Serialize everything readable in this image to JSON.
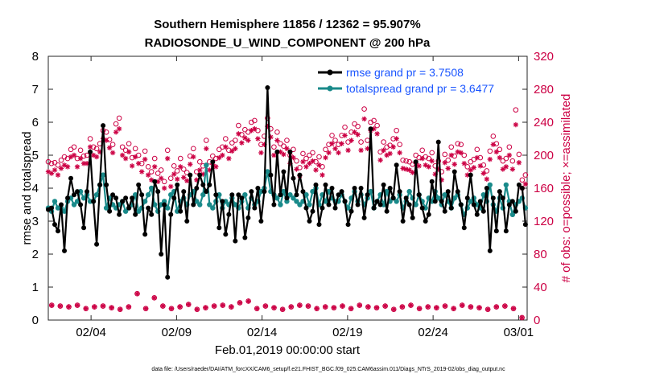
{
  "chart_data": {
    "type": "line",
    "title": "Southern Hemisphere 11856 / 12362 = 95.907%",
    "subtitle": "RADIOSONDE_U_WIND_COMPONENT @ 200 hPa",
    "xlabel": "Feb.01,2019 00:00:00 start",
    "ylabel": "rmse and totalspread",
    "y2label": "# of obs: o=possible; ×=assimilated",
    "footnote": "data file: /Users/raeder/DAI/ATM_forcXX/CAM6_setup/f.e21.FHIST_BGC.f09_025.CAM6assim.011/Diags_NTrS_2019-02/obs_diag_output.nc",
    "xlim": [
      1,
      29
    ],
    "ylim": [
      0,
      8
    ],
    "y2lim": [
      0,
      320
    ],
    "xticks": [
      {
        "x": 3.5,
        "label": "02/04"
      },
      {
        "x": 8.5,
        "label": "02/09"
      },
      {
        "x": 13.5,
        "label": "02/14"
      },
      {
        "x": 18.5,
        "label": "02/19"
      },
      {
        "x": 23.5,
        "label": "02/24"
      },
      {
        "x": 28.5,
        "label": "03/01"
      }
    ],
    "yticks": [
      "0",
      "1",
      "2",
      "3",
      "4",
      "5",
      "6",
      "7",
      "8"
    ],
    "y2ticks": [
      "0",
      "40",
      "80",
      "120",
      "160",
      "200",
      "240",
      "280",
      "320"
    ],
    "legend_position": "top-right",
    "colors": {
      "rmse": "#000000",
      "spread": "#198a8a",
      "obs": "#cc0044",
      "legend_text": "#1a55ff"
    },
    "series": [
      {
        "name": "rmse grand pr = 3.7508",
        "key": "rmse",
        "values": [
          3.35,
          3.4,
          2.9,
          2.7,
          3.5,
          2.1,
          3.7,
          4.3,
          3.8,
          3.9,
          3.5,
          2.8,
          3.9,
          5.1,
          3.6,
          2.3,
          4.1,
          5.9,
          4.1,
          3.3,
          3.8,
          3.7,
          3.2,
          3.6,
          3.7,
          3.4,
          3.7,
          3.2,
          4.1,
          3.8,
          2.6,
          3.4,
          3.2,
          4.2,
          3.9,
          2.0,
          3.5,
          1.3,
          3.2,
          3.7,
          4.1,
          3.3,
          3.9,
          3.0,
          4.4,
          3.5,
          4.0,
          4.4,
          4.1,
          3.9,
          4.1,
          4.8,
          3.8,
          2.8,
          3.6,
          2.6,
          3.2,
          3.8,
          2.4,
          3.8,
          3.7,
          2.5,
          3.1,
          3.9,
          3.4,
          4.0,
          3.0,
          3.9,
          7.05,
          4.4,
          3.5,
          5.1,
          3.8,
          4.5,
          3.7,
          5.1,
          4.3,
          3.8,
          4.4,
          3.9,
          3.4,
          3.0,
          3.3,
          4.1,
          2.9,
          3.4,
          4.1,
          3.5,
          4.0,
          3.4,
          3.8,
          3.9,
          3.6,
          2.9,
          3.3,
          4.0,
          3.5,
          4.0,
          3.1,
          3.8,
          5.8,
          3.4,
          3.6,
          3.5,
          4.1,
          3.3,
          4.0,
          3.7,
          4.7,
          3.9,
          3.0,
          3.7,
          3.5,
          3.1,
          4.8,
          3.8,
          3.4,
          3.0,
          3.2,
          4.2,
          3.6,
          5.4,
          3.6,
          3.3,
          3.9,
          3.4,
          4.5,
          3.9,
          3.5,
          2.8,
          3.7,
          4.4,
          3.5,
          3.2,
          3.6,
          3.3,
          4.0,
          2.1,
          3.7,
          2.7,
          3.9,
          3.7,
          2.7,
          3.5,
          3.6,
          3.3,
          4.1,
          4.0,
          2.9
        ]
      },
      {
        "name": "totalspread grand pr = 3.6477",
        "key": "spread",
        "values": [
          3.4,
          3.3,
          3.6,
          3.4,
          3.4,
          3.3,
          3.6,
          3.7,
          3.5,
          3.6,
          3.9,
          3.7,
          3.8,
          3.6,
          3.6,
          3.8,
          4.1,
          4.4,
          3.4,
          3.7,
          3.5,
          3.4,
          3.5,
          3.6,
          3.3,
          3.4,
          3.5,
          3.8,
          3.3,
          3.4,
          3.6,
          3.8,
          4.0,
          3.5,
          3.3,
          3.5,
          3.6,
          3.4,
          3.8,
          3.9,
          3.3,
          3.6,
          3.7,
          3.5,
          3.8,
          3.9,
          3.6,
          3.5,
          3.8,
          4.7,
          3.5,
          3.4,
          3.6,
          3.8,
          3.4,
          3.6,
          3.5,
          3.7,
          3.5,
          3.4,
          3.6,
          3.8,
          3.4,
          3.7,
          3.5,
          3.6,
          3.9,
          4.0,
          4.5,
          3.9,
          3.8,
          3.7,
          3.5,
          3.9,
          3.6,
          3.8,
          3.7,
          3.6,
          3.5,
          3.6,
          3.8,
          3.5,
          3.9,
          4.0,
          3.5,
          3.8,
          3.6,
          3.9,
          3.7,
          3.6,
          3.6,
          3.8,
          3.6,
          3.4,
          3.7,
          3.9,
          3.6,
          3.8,
          3.5,
          3.7,
          3.9,
          3.4,
          3.6,
          3.8,
          3.5,
          3.9,
          3.6,
          3.7,
          3.6,
          3.8,
          3.4,
          3.6,
          3.9,
          3.7,
          3.5,
          3.8,
          3.6,
          3.4,
          3.7,
          3.6,
          3.9,
          3.7,
          3.5,
          3.8,
          3.6,
          3.4,
          3.7,
          3.8,
          3.5,
          3.2,
          3.4,
          3.6,
          3.7,
          3.5,
          3.4,
          3.8,
          3.6,
          4.1,
          3.5,
          3.3,
          3.7,
          3.4,
          4.1,
          3.6,
          3.2,
          3.5,
          3.6,
          3.7,
          3.4
        ]
      },
      {
        "name": "obs possible",
        "key": "possible",
        "values": [
          192,
          190,
          191,
          188,
          194,
          198,
          196,
          207,
          210,
          196,
          206,
          199,
          200,
          220,
          210,
          208,
          214,
          230,
          228,
          219,
          213,
          238,
          245,
          210,
          206,
          214,
          197,
          208,
          200,
          190,
          205,
          186,
          180,
          196,
          178,
          182,
          168,
          206,
          172,
          187,
          181,
          196,
          183,
          179,
          199,
          208,
          180,
          192,
          187,
          218,
          192,
          199,
          196,
          207,
          210,
          220,
          206,
          215,
          218,
          236,
          225,
          231,
          228,
          240,
          242,
          230,
          213,
          223,
          245,
          232,
          210,
          228,
          214,
          211,
          218,
          200,
          207,
          193,
          185,
          202,
          196,
          200,
          203,
          192,
          198,
          186,
          207,
          213,
          224,
          218,
          213,
          224,
          234,
          216,
          228,
          238,
          235,
          216,
          256,
          218,
          240,
          242,
          236,
          204,
          216,
          210,
          212,
          220,
          230,
          213,
          194,
          193,
          192,
          189,
          200,
          197,
          206,
          198,
          196,
          203,
          187,
          193,
          180,
          201,
          194,
          210,
          199,
          214,
          213,
          200,
          186,
          192,
          195,
          207,
          197,
          188,
          181,
          205,
          223,
          214,
          207,
          193,
          196,
          210,
          193,
          255,
          201,
          170,
          176
        ]
      },
      {
        "name": "obs assimilated",
        "key": "assimilated",
        "values": [
          180,
          178,
          182,
          176,
          184,
          188,
          186,
          198,
          200,
          186,
          196,
          190,
          190,
          210,
          200,
          198,
          204,
          220,
          218,
          209,
          203,
          228,
          232,
          200,
          196,
          204,
          187,
          198,
          190,
          180,
          195,
          176,
          170,
          186,
          168,
          172,
          160,
          196,
          162,
          177,
          171,
          186,
          173,
          169,
          189,
          198,
          170,
          182,
          177,
          208,
          182,
          189,
          186,
          197,
          200,
          210,
          196,
          205,
          208,
          226,
          215,
          221,
          218,
          230,
          232,
          220,
          203,
          213,
          235,
          222,
          200,
          218,
          204,
          201,
          208,
          190,
          197,
          183,
          175,
          192,
          186,
          190,
          193,
          182,
          188,
          176,
          197,
          203,
          214,
          208,
          203,
          214,
          224,
          206,
          218,
          228,
          225,
          206,
          244,
          208,
          230,
          232,
          226,
          194,
          206,
          200,
          202,
          210,
          220,
          203,
          184,
          183,
          182,
          179,
          190,
          187,
          196,
          188,
          186,
          193,
          177,
          183,
          170,
          191,
          184,
          200,
          189,
          204,
          203,
          190,
          176,
          182,
          185,
          197,
          187,
          178,
          171,
          195,
          213,
          204,
          197,
          183,
          186,
          200,
          183,
          237,
          191,
          160,
          165
        ]
      },
      {
        "name": "obs low possible",
        "key": "low_possible",
        "x": [
          1.2,
          1.7,
          2.2,
          2.7,
          3.2,
          3.7,
          4.2,
          4.7,
          5.2,
          5.7,
          6.2,
          6.7,
          7.2,
          7.7,
          8.2,
          8.7,
          9.2,
          9.7,
          10.2,
          10.7,
          11.2,
          11.7,
          12.2,
          12.7,
          13.2,
          13.7,
          14.2,
          14.7,
          15.2,
          15.7,
          16.2,
          16.7,
          17.2,
          17.7,
          18.2,
          18.7,
          19.2,
          19.7,
          20.2,
          20.7,
          21.2,
          21.7,
          22.2,
          22.7,
          23.2,
          23.7,
          24.2,
          24.7,
          25.2,
          25.7,
          26.2,
          26.7,
          27.2,
          27.7,
          28.2,
          28.7
        ],
        "values": [
          18,
          17,
          16,
          18,
          14,
          16,
          17,
          15,
          13,
          16,
          32,
          14,
          27,
          17,
          14,
          16,
          19,
          13,
          15,
          17,
          18,
          16,
          21,
          23,
          14,
          17,
          15,
          13,
          16,
          18,
          17,
          14,
          16,
          15,
          17,
          14,
          18,
          16,
          15,
          17,
          13,
          16,
          18,
          14,
          16,
          15,
          17,
          14,
          18,
          16,
          15,
          13,
          16,
          17,
          14,
          3
        ]
      },
      {
        "name": "obs low assimilated",
        "key": "low_assimilated",
        "x": [
          1.2,
          1.7,
          2.2,
          2.7,
          3.2,
          3.7,
          4.2,
          4.7,
          5.2,
          5.7,
          6.2,
          6.7,
          7.2,
          7.7,
          8.2,
          8.7,
          9.2,
          9.7,
          10.2,
          10.7,
          11.2,
          11.7,
          12.2,
          12.7,
          13.2,
          13.7,
          14.2,
          14.7,
          15.2,
          15.7,
          16.2,
          16.7,
          17.2,
          17.7,
          18.2,
          18.7,
          19.2,
          19.7,
          20.2,
          20.7,
          21.2,
          21.7,
          22.2,
          22.7,
          23.2,
          23.7,
          24.2,
          24.7,
          25.2,
          25.7,
          26.2,
          26.7,
          27.2,
          27.7,
          28.2,
          28.7
        ],
        "values": [
          18,
          17,
          16,
          18,
          14,
          16,
          17,
          15,
          13,
          16,
          32,
          14,
          27,
          17,
          14,
          16,
          19,
          13,
          15,
          17,
          18,
          16,
          21,
          23,
          14,
          17,
          15,
          13,
          16,
          18,
          17,
          14,
          16,
          15,
          17,
          14,
          18,
          16,
          15,
          17,
          13,
          16,
          18,
          14,
          16,
          15,
          17,
          14,
          18,
          16,
          15,
          13,
          16,
          17,
          14,
          3
        ]
      }
    ]
  }
}
